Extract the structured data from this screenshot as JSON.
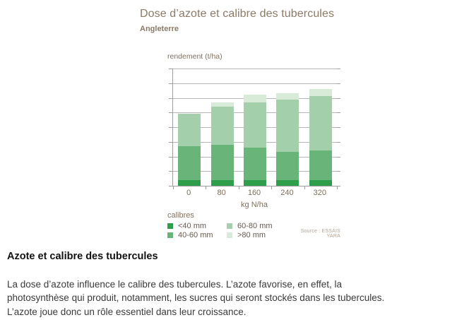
{
  "figure": {
    "source": "Source : ESSAIS YARA"
  },
  "chart_data": {
    "type": "bar",
    "stacked": true,
    "title": "Dose d’azote et calibre des tubercules",
    "subtitle": "Angleterre",
    "ylabel": "rendement (t/ha)",
    "xlabel": "kg N/ha",
    "categories": [
      "0",
      "80",
      "160",
      "240",
      "320"
    ],
    "series": [
      {
        "name": "<40 mm",
        "color": "#2f9e4b",
        "values": [
          4,
          4,
          4,
          4,
          4
        ]
      },
      {
        "name": "40-60 mm",
        "color": "#69b478",
        "values": [
          23,
          24,
          22,
          19,
          20
        ]
      },
      {
        "name": "60-80 mm",
        "color": "#a4cfab",
        "values": [
          22,
          26,
          31,
          36,
          37
        ]
      },
      {
        "name": ">80 mm",
        "color": "#d8ebd9",
        "values": [
          0,
          3,
          5,
          4,
          5
        ]
      }
    ],
    "totals": [
      49,
      57,
      62,
      63,
      66
    ],
    "ylim": [
      0,
      80
    ],
    "grid": true,
    "grid_divisions": 8,
    "y_tick_labels_visible": false,
    "legend_title": "calibres",
    "legend_position": "bottom-left"
  },
  "article": {
    "heading": "Azote et calibre des tubercules",
    "body": "La dose d’azote influence le calibre des tubercules. L’azote favorise, en effet, la photosynthèse qui produit, notamment, les sucres qui seront stockés dans les tubercules. L’azote joue donc un rôle essentiel dans leur croissance."
  }
}
